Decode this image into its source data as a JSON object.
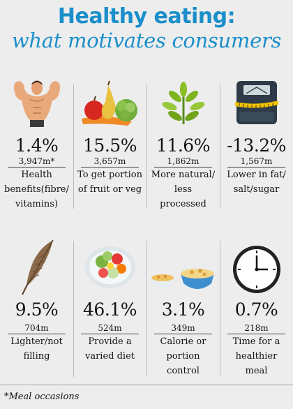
{
  "title": {
    "line1": "Healthy eating:",
    "line2": "what motivates consumers"
  },
  "items": [
    {
      "icon": "bodybuilder-icon",
      "percent": "1.4%",
      "volume": "3,947m*",
      "label": "Health benefits(fibre/ vitamins)"
    },
    {
      "icon": "fruit-veg-icon",
      "percent": "15.5%",
      "volume": "3,657m",
      "label": "To get portion of fruit or veg"
    },
    {
      "icon": "plant-sprout-icon",
      "percent": "11.6%",
      "volume": "1,862m",
      "label": "More natural/ less processed"
    },
    {
      "icon": "bathroom-scale-icon",
      "percent": "-13.2%",
      "volume": "1,567m",
      "label": "Lower in fat/ salt/sugar"
    },
    {
      "icon": "feather-icon",
      "percent": "9.5%",
      "volume": "704m",
      "label": "Lighter/not filling"
    },
    {
      "icon": "salad-plate-icon",
      "percent": "46.1%",
      "volume": "524m",
      "label": "Provide a varied diet"
    },
    {
      "icon": "cereal-bowls-icon",
      "percent": "3.1%",
      "volume": "349m",
      "label": "Calorie or portion control"
    },
    {
      "icon": "clock-icon",
      "percent": "0.7%",
      "volume": "218m",
      "label": "Time for a healthier meal"
    }
  ],
  "footnote": "*Meal occasions",
  "colors": {
    "background": "#ededee",
    "title": "#1a8fca",
    "text": "#121212"
  }
}
